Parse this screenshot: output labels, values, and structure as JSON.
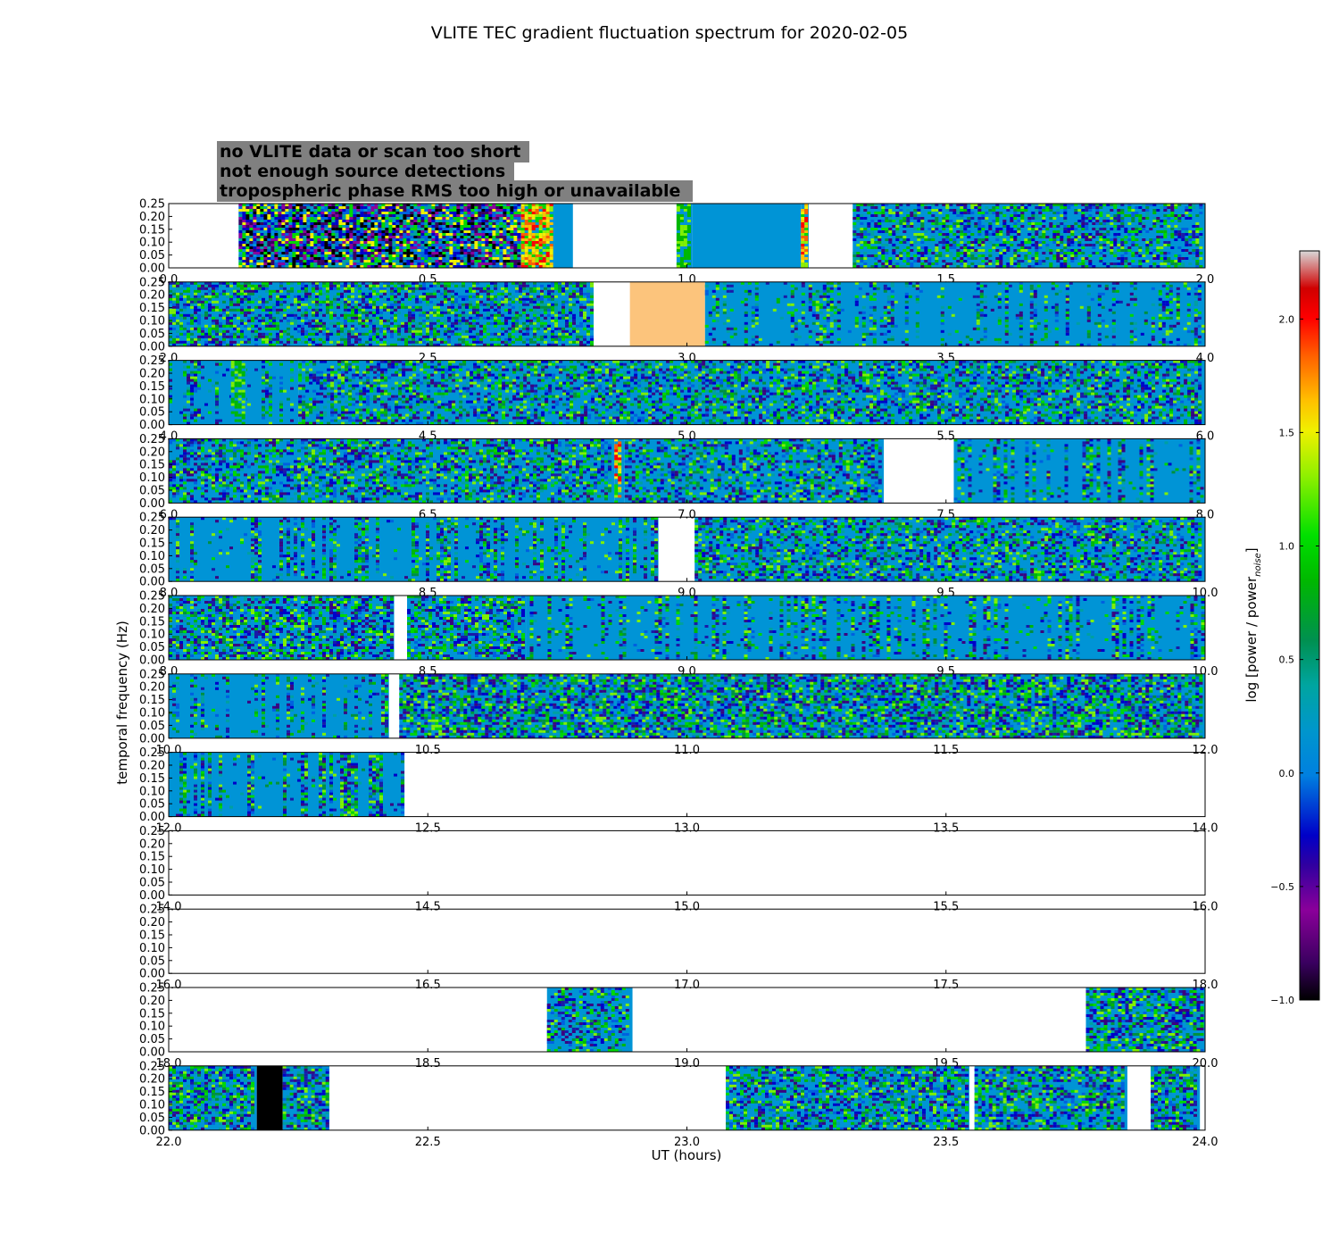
{
  "chart_data": {
    "type": "heatmap",
    "title": "VLITE TEC gradient fluctuation spectrum for 2020-02-05",
    "xlabel": "UT (hours)",
    "ylabel": "temporal frequency (Hz)",
    "colorbar_label": "log [power / power",
    "colorbar_label_subscript": "noise",
    "colorbar_label_close": "]",
    "colorbar_range": [
      -1.0,
      2.3
    ],
    "colorbar_ticks": [
      "−1.0",
      "−0.5",
      "0.0",
      "0.5",
      "1.0",
      "1.5",
      "2.0"
    ],
    "colorbar_tick_values": [
      -1.0,
      -0.5,
      0.0,
      0.5,
      1.0,
      1.5,
      2.0
    ],
    "ylim": [
      0.0,
      0.25
    ],
    "y_tick_labels": [
      "0.00",
      "0.05",
      "0.10",
      "0.15",
      "0.20",
      "0.25"
    ],
    "legend": {
      "position": "top-left",
      "items": [
        {
          "label": "no VLITE data or scan too short",
          "text_color": "#ffffff"
        },
        {
          "label": "not enough source detections",
          "text_color": "#000000"
        },
        {
          "label": "tropospheric phase RMS too high or unavailable",
          "text_color": "#fcc47c"
        }
      ],
      "background": "#808080"
    },
    "colors": {
      "baseline": "#0094d6",
      "tropo_flag": "#fcc47c",
      "detect_flag": "#000000"
    },
    "panels": [
      {
        "x_ticks": [
          "0.0",
          "0.5",
          "1.0",
          "1.5",
          "2.0"
        ],
        "xlim": [
          0.0,
          2.0
        ],
        "segments": [
          {
            "start": 0.135,
            "end": 0.68,
            "kind": "data",
            "activity": 0.95
          },
          {
            "start": 0.68,
            "end": 0.745,
            "kind": "data",
            "activity": 0.9,
            "hot": true
          },
          {
            "start": 0.745,
            "end": 0.78,
            "kind": "quiet"
          },
          {
            "start": 0.98,
            "end": 1.01,
            "kind": "data",
            "activity": 0.7,
            "green": true
          },
          {
            "start": 1.01,
            "end": 1.22,
            "kind": "quiet"
          },
          {
            "start": 1.22,
            "end": 1.235,
            "kind": "data",
            "activity": 0.8,
            "hot": true
          },
          {
            "start": 1.32,
            "end": 2.0,
            "kind": "data",
            "activity": 0.55
          }
        ]
      },
      {
        "x_ticks": [
          "2.0",
          "2.5",
          "3.0",
          "3.5",
          "4.0"
        ],
        "xlim": [
          2.0,
          4.0
        ],
        "segments": [
          {
            "start": 2.0,
            "end": 2.82,
            "kind": "data",
            "activity": 0.6
          },
          {
            "start": 2.89,
            "end": 3.035,
            "kind": "tropo"
          },
          {
            "start": 3.035,
            "end": 4.0,
            "kind": "sparse",
            "activity": 0.3
          }
        ]
      },
      {
        "x_ticks": [
          "4.0",
          "4.5",
          "5.0",
          "5.5",
          "6.0"
        ],
        "xlim": [
          4.0,
          6.0
        ],
        "segments": [
          {
            "start": 4.0,
            "end": 4.25,
            "kind": "sparse",
            "activity": 0.3
          },
          {
            "start": 4.12,
            "end": 4.15,
            "kind": "data",
            "activity": 0.7,
            "green": true
          },
          {
            "start": 4.25,
            "end": 6.0,
            "kind": "data",
            "activity": 0.55
          }
        ]
      },
      {
        "x_ticks": [
          "6.0",
          "6.5",
          "7.0",
          "7.5",
          "8.0"
        ],
        "xlim": [
          6.0,
          8.0
        ],
        "segments": [
          {
            "start": 6.0,
            "end": 6.86,
            "kind": "data",
            "activity": 0.55
          },
          {
            "start": 6.86,
            "end": 6.88,
            "kind": "data",
            "activity": 0.8,
            "hot": true
          },
          {
            "start": 6.88,
            "end": 7.38,
            "kind": "data",
            "activity": 0.5
          },
          {
            "start": 7.515,
            "end": 8.0,
            "kind": "sparse",
            "activity": 0.4
          }
        ]
      },
      {
        "x_ticks": [
          "8.0",
          "8.5",
          "9.0",
          "9.5",
          "10.0"
        ],
        "xlim": [
          8.0,
          10.0
        ],
        "segments": [
          {
            "start": 8.0,
            "end": 8.945,
            "kind": "sparse",
            "activity": 0.45
          },
          {
            "start": 9.015,
            "end": 10.0,
            "kind": "data",
            "activity": 0.55
          }
        ]
      },
      {
        "x_ticks": [
          "8.0",
          "8.5",
          "9.0",
          "9.5",
          "10.0"
        ],
        "xlim": [
          8.0,
          10.0
        ],
        "segments": [
          {
            "start": 8.0,
            "end": 8.435,
            "kind": "data",
            "activity": 0.6
          },
          {
            "start": 8.46,
            "end": 8.69,
            "kind": "data",
            "activity": 0.6
          },
          {
            "start": 8.69,
            "end": 10.0,
            "kind": "sparse",
            "activity": 0.4
          }
        ]
      },
      {
        "x_ticks": [
          "10.0",
          "10.5",
          "11.0",
          "11.5",
          "12.0"
        ],
        "xlim": [
          10.0,
          12.0
        ],
        "segments": [
          {
            "start": 10.0,
            "end": 10.41,
            "kind": "sparse",
            "activity": 0.3
          },
          {
            "start": 10.41,
            "end": 10.425,
            "kind": "data",
            "activity": 0.8
          },
          {
            "start": 10.445,
            "end": 12.0,
            "kind": "data",
            "activity": 0.7
          }
        ]
      },
      {
        "x_ticks": [
          "12.0",
          "12.5",
          "13.0",
          "13.5",
          "14.0"
        ],
        "xlim": [
          12.0,
          14.0
        ],
        "segments": [
          {
            "start": 12.0,
            "end": 12.455,
            "kind": "sparse",
            "activity": 0.5
          }
        ]
      },
      {
        "x_ticks": [
          "14.0",
          "14.5",
          "15.0",
          "15.5",
          "16.0"
        ],
        "xlim": [
          14.0,
          16.0
        ],
        "segments": []
      },
      {
        "x_ticks": [
          "16.0",
          "16.5",
          "17.0",
          "17.5",
          "18.0"
        ],
        "xlim": [
          16.0,
          18.0
        ],
        "segments": []
      },
      {
        "x_ticks": [
          "18.0",
          "18.5",
          "19.0",
          "19.5",
          "20.0"
        ],
        "xlim": [
          18.0,
          20.0
        ],
        "segments": [
          {
            "start": 18.73,
            "end": 18.895,
            "kind": "data",
            "activity": 0.5
          },
          {
            "start": 19.77,
            "end": 20.0,
            "kind": "data",
            "activity": 0.65
          }
        ]
      },
      {
        "x_ticks": [
          "22.0",
          "22.5",
          "23.0",
          "23.5",
          "24.0"
        ],
        "xlim": [
          22.0,
          24.0
        ],
        "segments": [
          {
            "start": 22.0,
            "end": 22.17,
            "kind": "data",
            "activity": 0.65
          },
          {
            "start": 22.17,
            "end": 22.22,
            "kind": "detect"
          },
          {
            "start": 22.22,
            "end": 22.31,
            "kind": "data",
            "activity": 0.65
          },
          {
            "start": 23.075,
            "end": 23.545,
            "kind": "data",
            "activity": 0.6
          },
          {
            "start": 23.555,
            "end": 23.85,
            "kind": "data",
            "activity": 0.6
          },
          {
            "start": 23.895,
            "end": 23.99,
            "kind": "data",
            "activity": 0.7
          }
        ]
      }
    ]
  }
}
